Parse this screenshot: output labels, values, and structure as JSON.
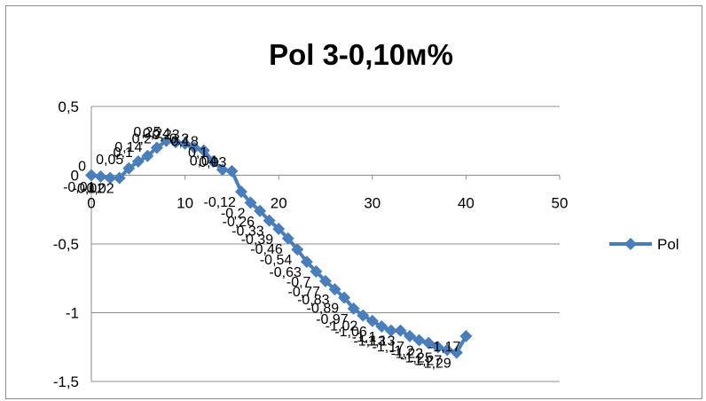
{
  "chart_data": {
    "type": "line",
    "title": "Pol 3-0,10м%",
    "xlabel": "",
    "ylabel": "",
    "xlim": [
      0,
      50
    ],
    "ylim": [
      -1.5,
      0.5
    ],
    "x_ticks": [
      0,
      10,
      20,
      30,
      40,
      50
    ],
    "y_ticks": [
      0.5,
      0,
      -0.5,
      -1,
      -1.5
    ],
    "x_tick_labels": [
      "0",
      "10",
      "20",
      "30",
      "40",
      "50"
    ],
    "y_tick_labels": [
      "0,5",
      "0",
      "-0,5",
      "-1",
      "-1,5"
    ],
    "grid": "horizontal",
    "legend": "right",
    "series": [
      {
        "name": "Pol",
        "color": "#4a7ebb",
        "marker": "diamond",
        "x": [
          0,
          1,
          2,
          3,
          4,
          5,
          6,
          7,
          8,
          9,
          10,
          11,
          12,
          13,
          14,
          15,
          16,
          17,
          18,
          19,
          20,
          21,
          22,
          23,
          24,
          25,
          26,
          27,
          28,
          29,
          30,
          31,
          32,
          33,
          34,
          35,
          36,
          37,
          38,
          39,
          40
        ],
        "values": [
          0,
          -0.01,
          -0.02,
          -0.02,
          0.05,
          0.1,
          0.14,
          0.2,
          0.25,
          0.24,
          0.23,
          0.2,
          0.18,
          0.1,
          0.04,
          0.03,
          -0.12,
          -0.2,
          -0.26,
          -0.33,
          -0.39,
          -0.46,
          -0.54,
          -0.63,
          -0.7,
          -0.77,
          -0.83,
          -0.89,
          -0.97,
          -1.02,
          -1.06,
          -1.1,
          -1.13,
          -1.13,
          -1.17,
          -1.2,
          -1.22,
          -1.25,
          -1.27,
          -1.29,
          -1.17
        ],
        "labels": [
          "0",
          "-0,01",
          "-0,02",
          "-0,02",
          "0,05",
          "0,1",
          "0,14",
          "0,2",
          "0,25",
          "0,24",
          "0,23",
          "0,2",
          "0,18",
          "0,1",
          "0,04",
          "0,03",
          "-0,12",
          "-0,2",
          "-0,26",
          "-0,33",
          "-0,39",
          "-0,46",
          "-0,54",
          "-0,63",
          "-0,7",
          "-0,77",
          "-0,83",
          "-0,89",
          "-0,97",
          "-1,02",
          "-1,06",
          "-1,1",
          "-1,13",
          "-1,13",
          "-1,17",
          "-1,2",
          "-1,22",
          "-1,25",
          "-1,27",
          "-1,29",
          "-1,17"
        ]
      }
    ]
  }
}
